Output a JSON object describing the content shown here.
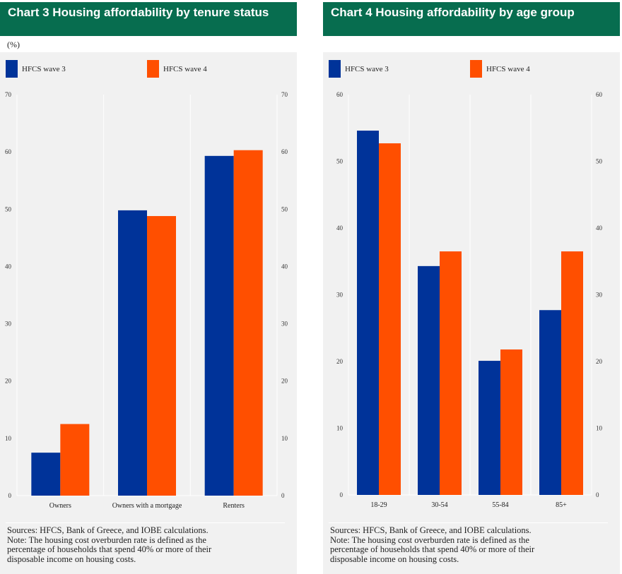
{
  "colors": {
    "wave3": "#003399",
    "wave4": "#ff4f00",
    "title_bg": "#076d4f",
    "chart_bg": "#f1f1f1",
    "grid": "#ffffff"
  },
  "chart_data": [
    {
      "type": "bar",
      "title": "Chart 3 Housing affordability by tenure status",
      "unit_label": "(%)",
      "categories": [
        "Owners",
        "Owners with a mortgage",
        "Renters"
      ],
      "series": [
        {
          "name": "HFCS wave 3",
          "values": [
            7.5,
            49.8,
            59.3
          ]
        },
        {
          "name": "HFCS wave 4",
          "values": [
            12.5,
            48.8,
            60.3
          ]
        }
      ],
      "ylim": [
        0,
        70
      ],
      "yticks": [
        0,
        10,
        20,
        30,
        40,
        50,
        60,
        70
      ],
      "legend_position": "top",
      "xlabel": "",
      "ylabel": "(%)",
      "sources": "Sources: HFCS, Bank of Greece, and IOBE calculations.",
      "note_lines": [
        "Note: The housing cost overburden rate is defined as the",
        "percentage of households that spend 40% or more of their",
        "disposable income on housing costs."
      ]
    },
    {
      "type": "bar",
      "title": "Chart 4 Housing affordability by age group",
      "categories": [
        "18-29",
        "30-54",
        "55-84",
        "85+"
      ],
      "series": [
        {
          "name": "HFCS wave 3",
          "values": [
            54.6,
            34.3,
            20.1,
            27.7
          ]
        },
        {
          "name": "HFCS wave 4",
          "values": [
            52.7,
            36.5,
            21.8,
            36.5
          ]
        }
      ],
      "ylim": [
        0,
        60
      ],
      "yticks": [
        0,
        10,
        20,
        30,
        40,
        50,
        60
      ],
      "legend_position": "top",
      "xlabel": "",
      "ylabel": "",
      "sources": "Sources: HFCS, Bank of Greece, and IOBE calculations.",
      "note_lines": [
        "Note: The housing cost overburden rate is defined as the",
        "percentage of households that spend 40% or more of their",
        "disposable income on housing costs."
      ]
    }
  ]
}
